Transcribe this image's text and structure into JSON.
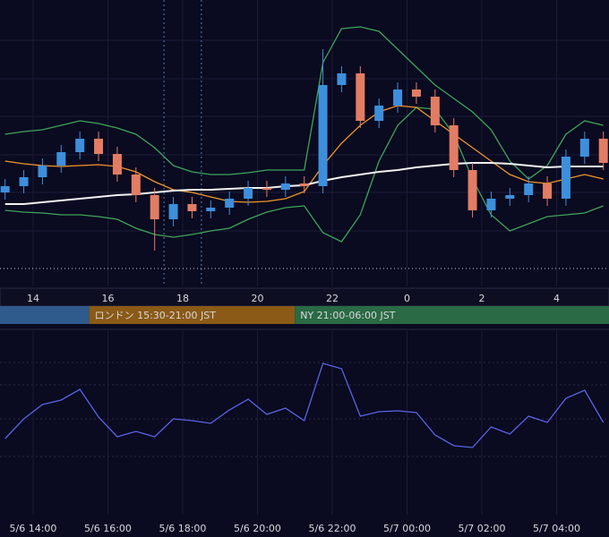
{
  "chart_data": [
    {
      "type": "candlestick",
      "x": [
        13.25,
        13.75,
        14.25,
        14.75,
        15.25,
        15.75,
        16.25,
        16.75,
        17.25,
        17.75,
        18.25,
        18.75,
        19.25,
        19.75,
        20.25,
        20.75,
        21.25,
        21.75,
        22.25,
        22.75,
        23.25,
        23.75,
        24.25,
        24.75,
        25.25,
        25.75,
        26.25,
        26.75,
        27.25,
        27.75,
        28.25,
        28.75,
        29.25
      ],
      "open": [
        105,
        112,
        122,
        135,
        150,
        165,
        148,
        125,
        102,
        75,
        92,
        84,
        88,
        98,
        110,
        108,
        115,
        112,
        225,
        238,
        185,
        202,
        220,
        212,
        180,
        130,
        85,
        98,
        102,
        115,
        98,
        145,
        165
      ],
      "high": [
        120,
        130,
        143,
        158,
        173,
        173,
        156,
        133,
        110,
        100,
        100,
        96,
        106,
        118,
        118,
        123,
        123,
        265,
        246,
        246,
        210,
        228,
        228,
        220,
        188,
        138,
        106,
        110,
        123,
        123,
        153,
        173,
        173
      ],
      "low": [
        97,
        104,
        114,
        127,
        142,
        140,
        117,
        94,
        40,
        67,
        76,
        76,
        80,
        90,
        100,
        100,
        104,
        104,
        217,
        177,
        177,
        194,
        204,
        172,
        122,
        77,
        77,
        90,
        94,
        90,
        90,
        137,
        130
      ],
      "close": [
        112,
        122,
        135,
        150,
        165,
        148,
        125,
        102,
        75,
        92,
        84,
        88,
        98,
        110,
        108,
        115,
        112,
        225,
        238,
        185,
        202,
        220,
        212,
        180,
        130,
        85,
        98,
        102,
        115,
        98,
        145,
        165,
        138
      ],
      "up_color": "#3d8fdc",
      "down_color": "#e27d64",
      "series": [
        {
          "color": "#3fa45a",
          "values": [
            170,
            173,
            175,
            180,
            185,
            182,
            177,
            170,
            155,
            135,
            128,
            125,
            125,
            127,
            130,
            130,
            130,
            250,
            288,
            290,
            285,
            265,
            245,
            225,
            210,
            195,
            175,
            140,
            120,
            135,
            170,
            185,
            180
          ]
        },
        {
          "color": "#3fa45a",
          "values": [
            85,
            83,
            82,
            80,
            80,
            78,
            75,
            65,
            58,
            55,
            58,
            62,
            65,
            75,
            83,
            88,
            90,
            60,
            50,
            80,
            140,
            180,
            200,
            198,
            170,
            120,
            80,
            62,
            70,
            78,
            80,
            82,
            90
          ]
        },
        {
          "color": "#f0962a",
          "values": [
            140,
            137,
            135,
            134,
            135,
            136,
            134,
            128,
            117,
            108,
            105,
            100,
            95,
            94,
            95,
            98,
            106,
            135,
            160,
            180,
            195,
            202,
            200,
            185,
            170,
            155,
            140,
            125,
            117,
            115,
            120,
            125,
            120
          ]
        },
        {
          "color": "#f2f2f2",
          "values": [
            92,
            92,
            94,
            96,
            98,
            100,
            102,
            103,
            105,
            107,
            108,
            108,
            109,
            110,
            110,
            112,
            113,
            118,
            122,
            125,
            128,
            130,
            133,
            135,
            137,
            138,
            138,
            137,
            135,
            133,
            134,
            134,
            134
          ]
        }
      ],
      "xlim": [
        13.114,
        29.401
      ],
      "xticks": [
        14,
        16,
        18,
        20,
        22,
        {
          "value": 24,
          "label": "0"
        },
        {
          "value": 26,
          "label": "2"
        },
        {
          "value": 28,
          "label": "4"
        }
      ],
      "ylim": [
        0,
        320
      ],
      "markers": [
        17.5,
        18.5
      ],
      "marker_color": "#4a7fc0",
      "hline": 20,
      "sessions": [
        {
          "start": 13.114,
          "end": 15.5,
          "color": "#2e5a8c"
        },
        {
          "label": "ロンドン 15:30-21:00 JST",
          "start": 15.5,
          "end": 21,
          "color": "#8a5a16"
        },
        {
          "label": "NY 21:00-06:00 JST",
          "start": 21,
          "end": 29.401,
          "color": "#2a6a44"
        }
      ]
    },
    {
      "type": "line",
      "x": [
        13.25,
        13.75,
        14.25,
        14.75,
        15.25,
        15.75,
        16.25,
        16.75,
        17.25,
        17.75,
        18.25,
        18.75,
        19.25,
        19.75,
        20.25,
        20.75,
        21.25,
        21.75,
        22.25,
        22.75,
        23.25,
        23.75,
        24.25,
        24.75,
        25.25,
        25.75,
        26.25,
        26.75,
        27.25,
        27.75,
        28.25,
        28.75,
        29.25
      ],
      "values": [
        90,
        112,
        128,
        133,
        145,
        114,
        92,
        98,
        92,
        112,
        110,
        107,
        122,
        134,
        117,
        124,
        110,
        174,
        168,
        115,
        120,
        121,
        119,
        94,
        82,
        80,
        103,
        95,
        115,
        108,
        135,
        144,
        108
      ],
      "color": "#5b63e6",
      "xlim": [
        13.114,
        29.401
      ],
      "ylim": [
        0,
        210
      ],
      "xticks": [
        {
          "value": 14,
          "label": "5/6 14:00"
        },
        {
          "value": 16,
          "label": "5/6 16:00"
        },
        {
          "value": 18,
          "label": "5/6 18:00"
        },
        {
          "value": 20,
          "label": "5/6 20:00"
        },
        {
          "value": 22,
          "label": "5/6 22:00"
        },
        {
          "value": 24,
          "label": "5/7 00:00"
        },
        {
          "value": 26,
          "label": "5/7 02:00"
        },
        {
          "value": 28,
          "label": "5/7 04:00"
        }
      ]
    }
  ]
}
